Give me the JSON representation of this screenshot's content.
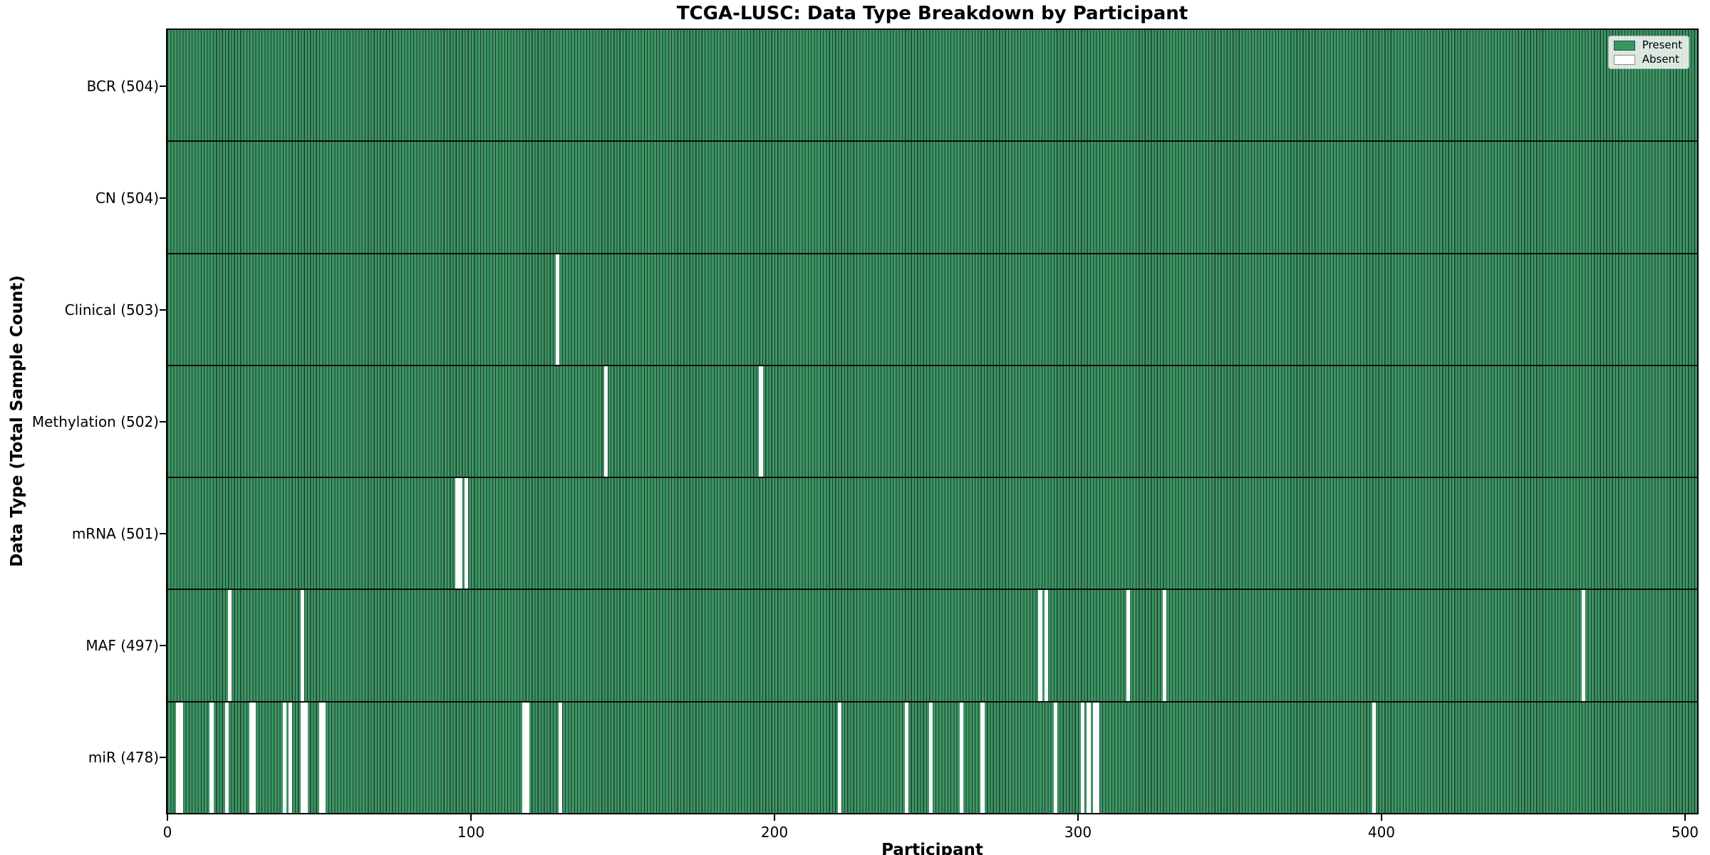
{
  "title": "TCGA-LUSC: Data Type Breakdown by Participant",
  "colors": {
    "present": "#3c9664",
    "bar_edge": "#1e3c2d",
    "absent": "#ffffff",
    "axis": "#000000",
    "legend_background": "#f2f2ee"
  },
  "legend": {
    "position": "upper right",
    "items": [
      {
        "label": "Present",
        "color_key": "present"
      },
      {
        "label": "Absent",
        "color_key": "absent"
      }
    ]
  },
  "chart_data": {
    "type": "heatmap",
    "title": "TCGA-LUSC: Data Type Breakdown by Participant",
    "xlabel": "Participant",
    "ylabel": "Data Type (Total Sample Count)",
    "x_ticks": [
      0,
      100,
      200,
      300,
      400,
      500
    ],
    "xlim": [
      0,
      504
    ],
    "n_participants": 504,
    "grid": false,
    "cell_values": "present=1 absent=0",
    "rows": [
      {
        "name": "BCR",
        "total": 504,
        "absent_indices": []
      },
      {
        "name": "CN",
        "total": 504,
        "absent_indices": []
      },
      {
        "name": "Clinical",
        "total": 503,
        "absent_indices": [
          128
        ]
      },
      {
        "name": "Methylation",
        "total": 502,
        "absent_indices": [
          144,
          195
        ]
      },
      {
        "name": "mRNA",
        "total": 501,
        "absent_indices": [
          95,
          96,
          98
        ]
      },
      {
        "name": "MAF",
        "total": 497,
        "absent_indices": [
          20,
          44,
          287,
          289,
          316,
          328,
          466
        ]
      },
      {
        "name": "miR",
        "total": 478,
        "absent_indices": [
          3,
          4,
          14,
          19,
          27,
          28,
          38,
          40,
          44,
          45,
          50,
          51,
          117,
          118,
          129,
          221,
          243,
          251,
          261,
          268,
          292,
          301,
          303,
          305,
          306,
          397
        ]
      }
    ],
    "row_label_format": "{name} ({total})"
  }
}
